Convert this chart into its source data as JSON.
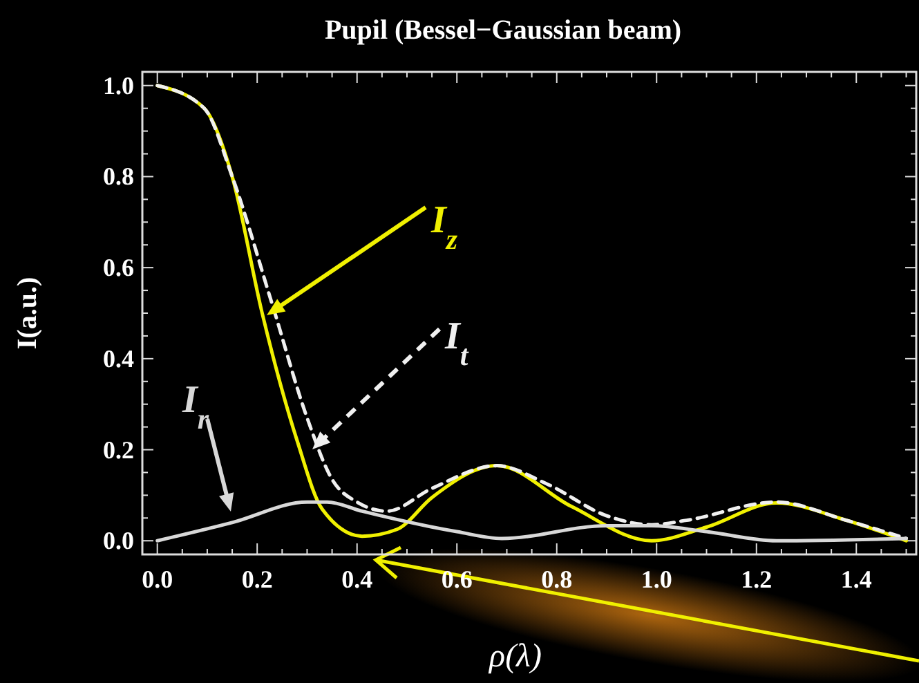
{
  "chart_data": {
    "type": "line",
    "title": "Pupil (Bessel−Gaussian beam)",
    "xlabel": "ρ(λ)",
    "ylabel": "I(a.u.)",
    "xlim": [
      -0.03,
      1.52
    ],
    "ylim": [
      -0.03,
      1.03
    ],
    "xticks": [
      {
        "value": 0,
        "label": "0.0"
      },
      {
        "value": 0.2,
        "label": "0.2"
      },
      {
        "value": 0.4,
        "label": "0.4"
      },
      {
        "value": 0.6,
        "label": "0.6"
      },
      {
        "value": 0.8,
        "label": "0.8"
      },
      {
        "value": 1,
        "label": "1.0"
      },
      {
        "value": 1.2,
        "label": "1.2"
      },
      {
        "value": 1.4,
        "label": "1.4"
      }
    ],
    "yticks": [
      {
        "value": 0,
        "label": "0.0"
      },
      {
        "value": 0.2,
        "label": "0.2"
      },
      {
        "value": 0.4,
        "label": "0.4"
      },
      {
        "value": 0.6,
        "label": "0.6"
      },
      {
        "value": 0.8,
        "label": "0.8"
      },
      {
        "value": 1,
        "label": "1.0"
      }
    ],
    "grid": false,
    "series": [
      {
        "name": "I$_{z}$",
        "color": "#f0f000",
        "line_style": "solid",
        "x": [
          0,
          0.094,
          0.15,
          0.21,
          0.28,
          0.33,
          0.41,
          0.48,
          0.55,
          0.68,
          0.83,
          0.99,
          1.1,
          1.24,
          1.38,
          1.5
        ],
        "values": [
          1,
          0.95,
          0.8,
          0.5,
          0.22,
          0.07,
          0.01,
          0.025,
          0.095,
          0.165,
          0.075,
          0,
          0.03,
          0.083,
          0.045,
          0
        ]
      },
      {
        "name": "I$_{t}$",
        "color": "#f0f0f0",
        "line_style": "dashed",
        "x": [
          0,
          0.094,
          0.15,
          0.23,
          0.3,
          0.35,
          0.4,
          0.46,
          0.55,
          0.68,
          0.78,
          0.9,
          0.99,
          1.06,
          1.24,
          1.38,
          1.5
        ],
        "values": [
          1,
          0.95,
          0.8,
          0.52,
          0.27,
          0.135,
          0.085,
          0.065,
          0.115,
          0.165,
          0.125,
          0.055,
          0.035,
          0.045,
          0.085,
          0.045,
          0.005
        ]
      },
      {
        "name": "I$_{r}$",
        "color": "#d8d8d8",
        "line_style": "solid",
        "x": [
          0,
          0.15,
          0.3,
          0.34,
          0.41,
          0.6,
          0.69,
          0.9,
          0.99,
          1.1,
          1.24,
          1.5
        ],
        "values": [
          0,
          0.04,
          0.085,
          0.085,
          0.065,
          0.02,
          0.005,
          0.033,
          0.033,
          0.02,
          0,
          0.005
        ]
      }
    ]
  }
}
